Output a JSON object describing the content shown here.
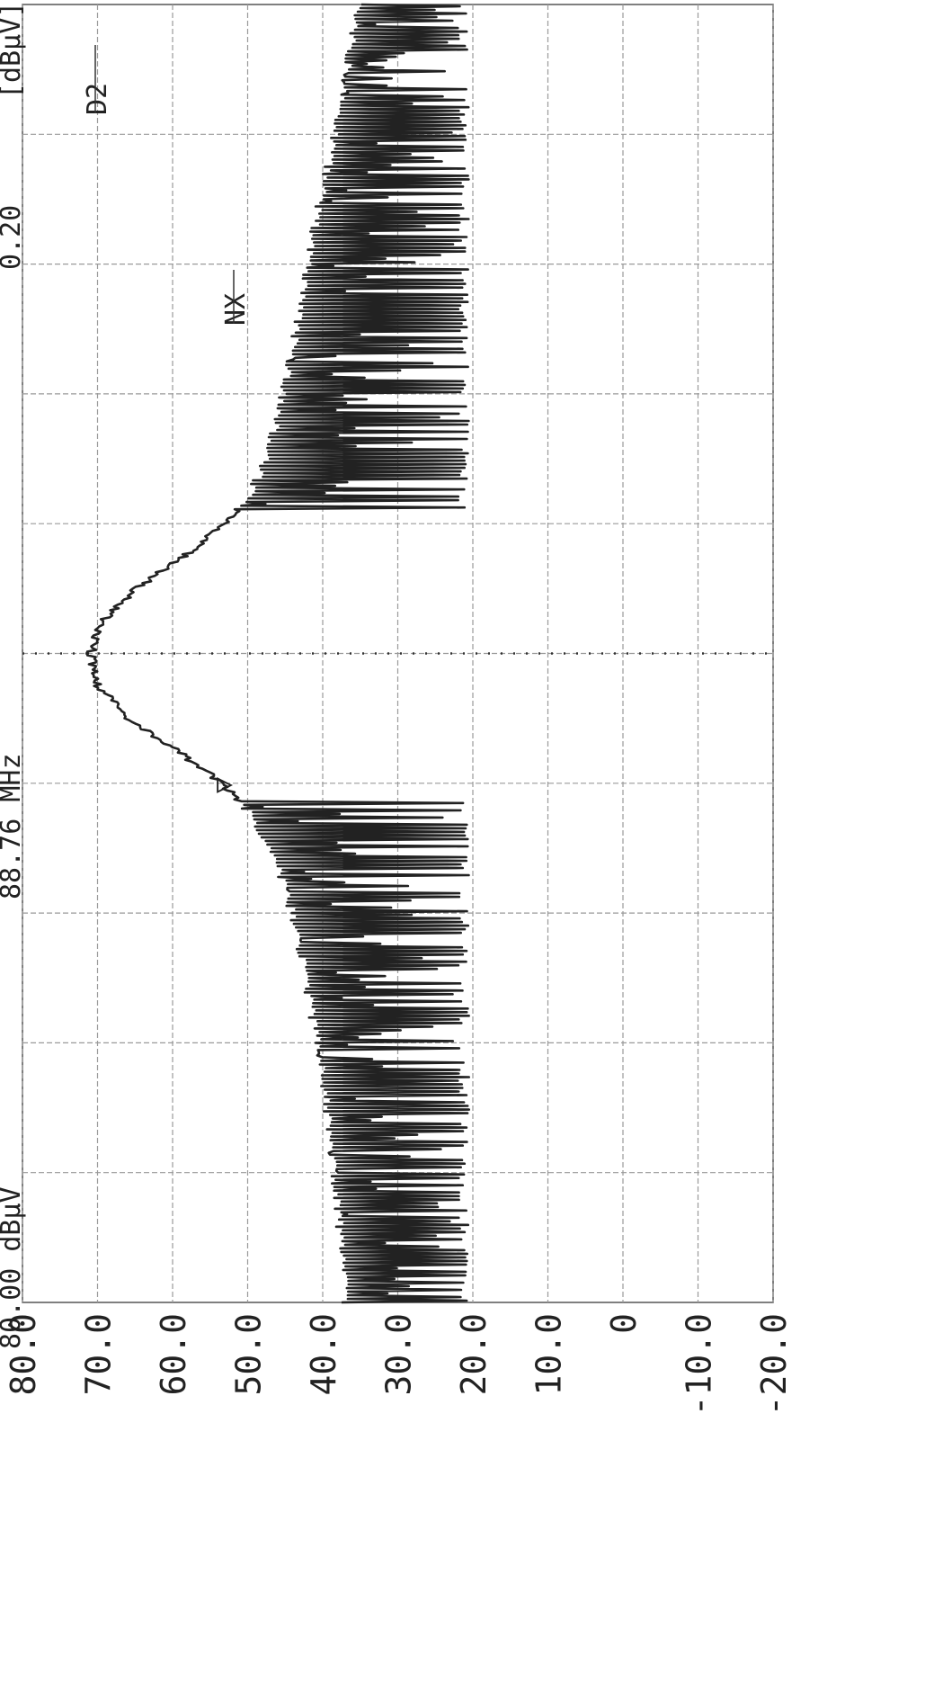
{
  "header": {
    "ref_level": "80.00 dBμV",
    "center_freq": "88.76 MHz",
    "span": "0.20",
    "unit": "[dBμV]"
  },
  "markers": {
    "marker_symbol": "▽",
    "nx_label": "NX",
    "d2_label": "D2"
  },
  "chart_data": {
    "type": "line",
    "title": "",
    "xlabel": "",
    "ylabel": "",
    "y_ticks": [
      "80.0",
      "70.0",
      "60.0",
      "50.0",
      "40.0",
      "30.0",
      "20.0",
      "10.0",
      "0",
      "-10.0",
      "-20.0"
    ],
    "ylim": [
      -20,
      80
    ],
    "x_divisions": 10,
    "grid": true,
    "center_marker_line": true,
    "noise_floor": 20.5,
    "peak_value": 71.5,
    "series": [
      {
        "values": [
          37.5,
          37.8,
          38.2,
          38.5,
          39.0,
          39.5,
          40.0,
          40.6,
          41.2,
          42.0,
          42.8,
          43.6,
          44.6,
          45.8,
          47.5,
          50.0,
          54.0,
          60.0,
          66.5,
          70.5,
          71.5,
          70.0,
          65.5,
          59.0,
          53.5,
          50.0,
          48.0,
          46.8,
          45.7,
          44.8,
          44.0,
          43.2,
          42.5,
          41.7,
          40.8,
          39.8,
          38.8,
          38.0,
          37.2,
          36.5,
          36.0
        ]
      }
    ]
  }
}
